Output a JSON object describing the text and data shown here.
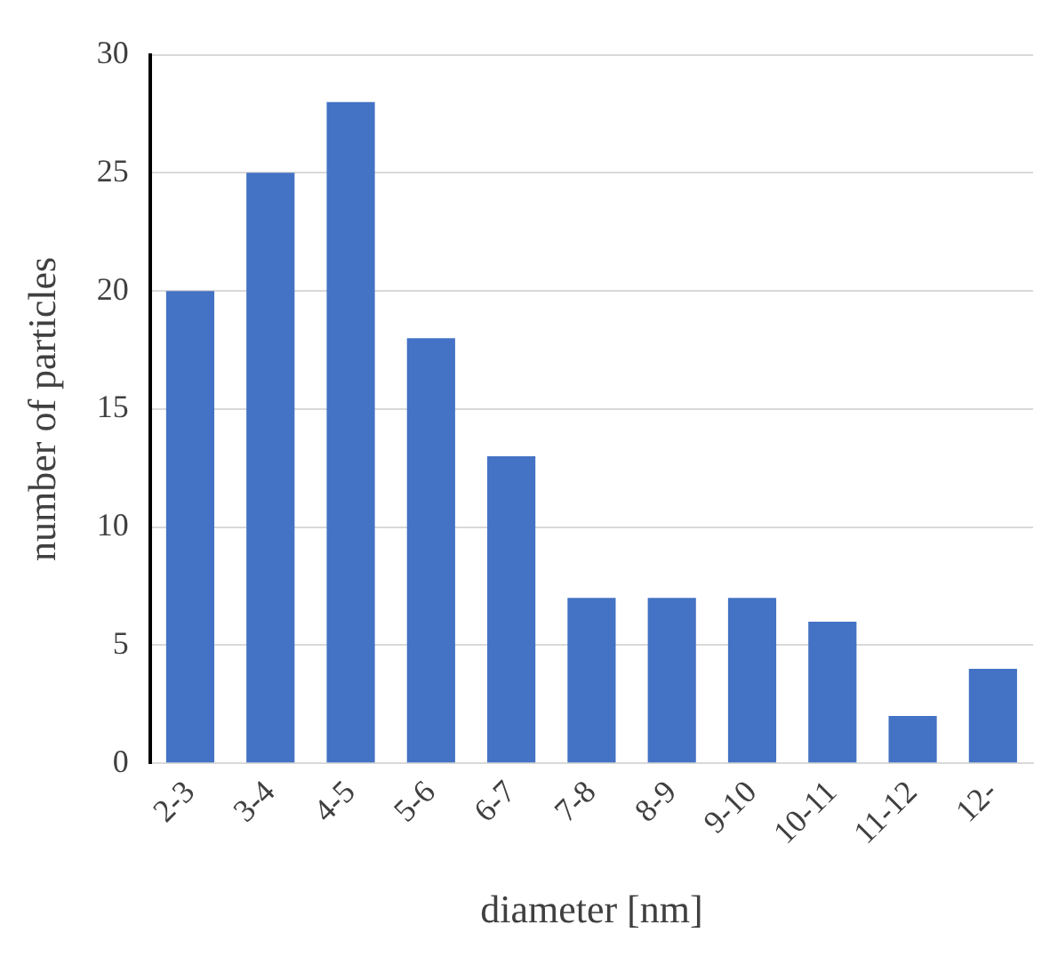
{
  "chart_data": {
    "type": "bar",
    "xlabel": "diameter [nm]",
    "ylabel": "number of particles",
    "categories": [
      "2-3",
      "3-4",
      "4-5",
      "5-6",
      "6-7",
      "7-8",
      "8-9",
      "9-10",
      "10-11",
      "11-12",
      "12-"
    ],
    "values": [
      20,
      25,
      28,
      18,
      13,
      7,
      7,
      7,
      6,
      2,
      4
    ],
    "color": "#4472c4",
    "ylim": [
      0,
      30
    ],
    "yticks": [
      0,
      5,
      10,
      15,
      20,
      25,
      30
    ],
    "grid": "y",
    "legend": false
  }
}
